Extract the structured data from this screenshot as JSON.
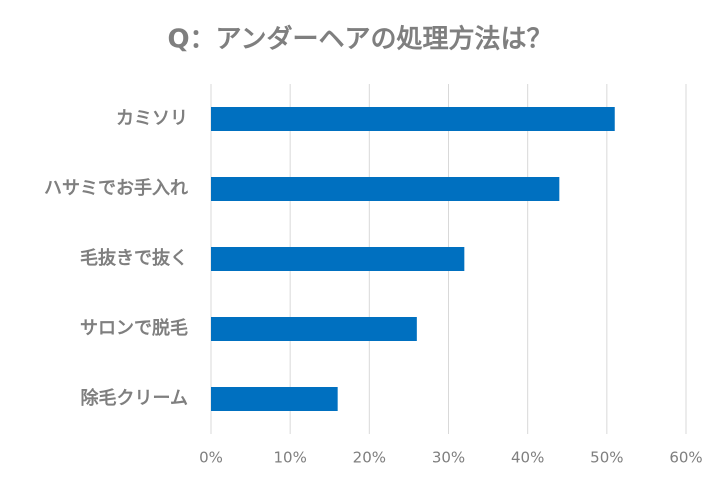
{
  "chart_data": {
    "type": "bar",
    "orientation": "horizontal",
    "title": "Q：アンダーヘアの処理方法は？",
    "categories": [
      "カミソリ",
      "ハサミでお手入れ",
      "毛抜きで抜く",
      "サロンで脱毛",
      "除毛クリーム"
    ],
    "values": [
      51,
      44,
      32,
      26,
      16
    ],
    "color": "#0070c0",
    "xlim": [
      0,
      60
    ],
    "xticks": [
      {
        "value": 0,
        "label": "0%"
      },
      {
        "value": 10,
        "label": "10%"
      },
      {
        "value": 20,
        "label": "20%"
      },
      {
        "value": 30,
        "label": "30%"
      },
      {
        "value": 40,
        "label": "40%"
      },
      {
        "value": 50,
        "label": "50%"
      },
      {
        "value": 60,
        "label": "60%"
      }
    ],
    "grid": true
  }
}
